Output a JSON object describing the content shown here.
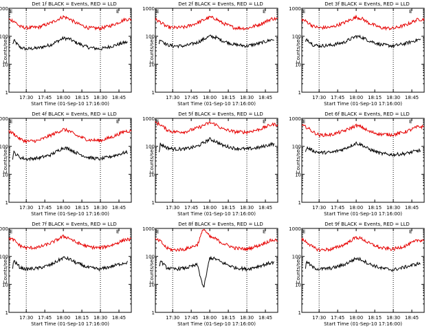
{
  "colors": {
    "events": "#000000",
    "lld": "#e60000",
    "background": "#ffffff"
  },
  "chart_data": [
    {
      "type": "line",
      "title": "Det 1f BLACK = Events, RED = LLD",
      "xlabel": "Start Time (01-Sep-10 17:16:00)",
      "ylabel": "Counts/sec",
      "yscale": "log",
      "ylim": [
        1,
        1000
      ],
      "xlim": [
        "17:16",
        "18:55"
      ],
      "x_ticks": [
        "17:30",
        "17:45",
        "18:00",
        "18:15",
        "18:30",
        "18:45"
      ],
      "y_ticks": [
        "1",
        "10",
        "100",
        "1000"
      ],
      "corner_markers": [
        "E",
        "E"
      ],
      "vertical_lines": [
        "17:30",
        "18:30"
      ],
      "x": [
        "17:16",
        "17:20",
        "17:25",
        "17:30",
        "17:40",
        "17:50",
        "18:00",
        "18:05",
        "18:10",
        "18:20",
        "18:30",
        "18:40",
        "18:50"
      ],
      "series": [
        {
          "name": "Events",
          "color": "black",
          "values": [
            20,
            70,
            40,
            35,
            38,
            50,
            85,
            80,
            60,
            40,
            35,
            45,
            60
          ],
          "start": "17:19",
          "end": "18:52"
        },
        {
          "name": "LLD",
          "color": "red",
          "values": [
            400,
            350,
            220,
            200,
            210,
            300,
            500,
            420,
            300,
            200,
            190,
            250,
            400
          ],
          "start": "17:16",
          "end": "18:55"
        }
      ]
    },
    {
      "type": "line",
      "title": "Det 2f BLACK = Events, RED = LLD",
      "xlabel": "Start Time (01-Sep-10 17:16:00)",
      "ylabel": "Counts/sec",
      "yscale": "log",
      "ylim": [
        1,
        1000
      ],
      "xlim": [
        "17:16",
        "18:55"
      ],
      "x_ticks": [
        "17:30",
        "17:45",
        "18:00",
        "18:15",
        "18:30",
        "18:45"
      ],
      "y_ticks": [
        "1",
        "10",
        "100",
        "1000"
      ],
      "corner_markers": [
        "E",
        "E"
      ],
      "vertical_lines": [
        "17:30",
        "18:30"
      ],
      "x": [
        "17:16",
        "17:20",
        "17:25",
        "17:30",
        "17:40",
        "17:50",
        "18:00",
        "18:05",
        "18:10",
        "18:20",
        "18:30",
        "18:40",
        "18:50"
      ],
      "series": [
        {
          "name": "Events",
          "color": "black",
          "values": [
            20,
            80,
            50,
            45,
            45,
            60,
            100,
            90,
            70,
            50,
            45,
            55,
            75
          ],
          "start": "17:19",
          "end": "18:52"
        },
        {
          "name": "LLD",
          "color": "red",
          "values": [
            400,
            320,
            220,
            200,
            210,
            300,
            480,
            420,
            300,
            200,
            190,
            260,
            420
          ],
          "start": "17:16",
          "end": "18:55"
        }
      ]
    },
    {
      "type": "line",
      "title": "Det 3f BLACK = Events, RED = LLD",
      "xlabel": "Start Time (01-Sep-10 17:16:00)",
      "ylabel": "Counts/sec",
      "yscale": "log",
      "ylim": [
        1,
        1000
      ],
      "xlim": [
        "17:16",
        "18:55"
      ],
      "x_ticks": [
        "17:30",
        "17:45",
        "18:00",
        "18:15",
        "18:30",
        "18:45"
      ],
      "y_ticks": [
        "1",
        "10",
        "100",
        "1000"
      ],
      "corner_markers": [
        "E",
        "E"
      ],
      "vertical_lines": [
        "17:30",
        "18:30"
      ],
      "x": [
        "17:16",
        "17:20",
        "17:25",
        "17:30",
        "17:40",
        "17:50",
        "18:00",
        "18:05",
        "18:10",
        "18:20",
        "18:30",
        "18:40",
        "18:50"
      ],
      "series": [
        {
          "name": "Events",
          "color": "black",
          "values": [
            25,
            80,
            50,
            45,
            48,
            60,
            100,
            90,
            70,
            50,
            45,
            55,
            75
          ],
          "start": "17:19",
          "end": "18:52"
        },
        {
          "name": "LLD",
          "color": "red",
          "values": [
            400,
            330,
            230,
            200,
            210,
            300,
            480,
            420,
            300,
            200,
            190,
            250,
            400
          ],
          "start": "17:16",
          "end": "18:55"
        }
      ]
    },
    {
      "type": "line",
      "title": "Det 4f BLACK = Events, RED = LLD",
      "xlabel": "Start Time (01-Sep-10 17:16:00)",
      "ylabel": "Counts/sec",
      "yscale": "log",
      "ylim": [
        1,
        1000
      ],
      "xlim": [
        "17:16",
        "18:55"
      ],
      "x_ticks": [
        "17:30",
        "17:45",
        "18:00",
        "18:15",
        "18:30",
        "18:45"
      ],
      "y_ticks": [
        "1",
        "10",
        "100",
        "1000"
      ],
      "corner_markers": [
        "E",
        "E"
      ],
      "vertical_lines": [
        "17:30",
        "18:30"
      ],
      "x": [
        "17:16",
        "17:20",
        "17:25",
        "17:30",
        "17:40",
        "17:50",
        "18:00",
        "18:05",
        "18:10",
        "18:20",
        "18:30",
        "18:40",
        "18:50"
      ],
      "series": [
        {
          "name": "Events",
          "color": "black",
          "values": [
            10,
            60,
            40,
            35,
            38,
            50,
            90,
            80,
            60,
            40,
            35,
            45,
            60
          ],
          "start": "17:19",
          "end": "18:52"
        },
        {
          "name": "LLD",
          "color": "red",
          "values": [
            350,
            280,
            180,
            150,
            160,
            250,
            400,
            350,
            250,
            170,
            160,
            220,
            350
          ],
          "start": "17:16",
          "end": "18:55"
        }
      ]
    },
    {
      "type": "line",
      "title": "Det 5f BLACK = Events, RED = LLD",
      "xlabel": "Start Time (01-Sep-10 17:16:00)",
      "ylabel": "Counts/sec",
      "yscale": "log",
      "ylim": [
        1,
        1000
      ],
      "xlim": [
        "17:16",
        "18:55"
      ],
      "x_ticks": [
        "17:30",
        "17:45",
        "18:00",
        "18:15",
        "18:30",
        "18:45"
      ],
      "y_ticks": [
        "1",
        "10",
        "100",
        "1000"
      ],
      "corner_markers": [
        "E",
        "E"
      ],
      "vertical_lines": [
        "17:30",
        "18:30"
      ],
      "x": [
        "17:16",
        "17:20",
        "17:25",
        "17:30",
        "17:40",
        "17:50",
        "18:00",
        "18:05",
        "18:10",
        "18:20",
        "18:30",
        "18:40",
        "18:50"
      ],
      "series": [
        {
          "name": "Events",
          "color": "black",
          "values": [
            10,
            120,
            90,
            80,
            80,
            100,
            180,
            150,
            110,
            85,
            80,
            90,
            120
          ],
          "start": "17:19",
          "end": "18:52"
        },
        {
          "name": "LLD",
          "color": "red",
          "values": [
            700,
            600,
            400,
            330,
            330,
            450,
            700,
            600,
            420,
            330,
            320,
            400,
            600
          ],
          "start": "17:16",
          "end": "18:55"
        }
      ]
    },
    {
      "type": "line",
      "title": "Det 6f BLACK = Events, RED = LLD",
      "xlabel": "Start Time (01-Sep-10 17:16:00)",
      "ylabel": "Counts/sec",
      "yscale": "log",
      "ylim": [
        1,
        1000
      ],
      "xlim": [
        "17:16",
        "18:55"
      ],
      "x_ticks": [
        "17:30",
        "17:45",
        "18:00",
        "18:15",
        "18:30",
        "18:45"
      ],
      "y_ticks": [
        "1",
        "10",
        "100",
        "1000"
      ],
      "corner_markers": [
        "E",
        "E"
      ],
      "vertical_lines": [
        "17:30",
        "18:30"
      ],
      "x": [
        "17:16",
        "17:20",
        "17:25",
        "17:30",
        "17:40",
        "17:50",
        "18:00",
        "18:05",
        "18:10",
        "18:20",
        "18:30",
        "18:40",
        "18:50"
      ],
      "series": [
        {
          "name": "Events",
          "color": "black",
          "values": [
            15,
            90,
            70,
            60,
            60,
            80,
            130,
            110,
            80,
            55,
            50,
            55,
            70
          ],
          "start": "17:19",
          "end": "18:52"
        },
        {
          "name": "LLD",
          "color": "red",
          "values": [
            550,
            480,
            330,
            250,
            260,
            350,
            550,
            480,
            340,
            270,
            260,
            330,
            500
          ],
          "start": "17:16",
          "end": "18:55"
        }
      ]
    },
    {
      "type": "line",
      "title": "Det 7f BLACK = Events, RED = LLD",
      "xlabel": "Start Time (01-Sep-10 17:16:00)",
      "ylabel": "Counts/sec",
      "yscale": "log",
      "ylim": [
        1,
        1000
      ],
      "xlim": [
        "17:16",
        "18:55"
      ],
      "x_ticks": [
        "17:30",
        "17:45",
        "18:00",
        "18:15",
        "18:30",
        "18:45"
      ],
      "y_ticks": [
        "1",
        "10",
        "100",
        "1000"
      ],
      "corner_markers": [
        "E",
        "E"
      ],
      "vertical_lines": [
        "17:30",
        "18:30"
      ],
      "x": [
        "17:16",
        "17:20",
        "17:25",
        "17:30",
        "17:40",
        "17:50",
        "18:00",
        "18:05",
        "18:10",
        "18:20",
        "18:30",
        "18:40",
        "18:50"
      ],
      "series": [
        {
          "name": "Events",
          "color": "black",
          "values": [
            8,
            70,
            40,
            35,
            38,
            50,
            90,
            80,
            60,
            40,
            35,
            45,
            60
          ],
          "start": "17:19",
          "end": "18:52"
        },
        {
          "name": "LLD",
          "color": "red",
          "values": [
            450,
            380,
            240,
            200,
            210,
            300,
            520,
            450,
            320,
            220,
            200,
            260,
            400
          ],
          "start": "17:16",
          "end": "18:55"
        }
      ]
    },
    {
      "type": "line",
      "title": "Det 8f BLACK = Events, RED = LLD",
      "xlabel": "Start Time (01-Sep-10 17:16:00)",
      "ylabel": "Counts/sec",
      "yscale": "log",
      "ylim": [
        1,
        1000
      ],
      "xlim": [
        "17:16",
        "18:55"
      ],
      "x_ticks": [
        "17:30",
        "17:45",
        "18:00",
        "18:15",
        "18:30",
        "18:45"
      ],
      "y_ticks": [
        "1",
        "10",
        "100",
        "1000"
      ],
      "corner_markers": [
        "E",
        "E"
      ],
      "vertical_lines": [
        "17:30",
        "18:30"
      ],
      "x": [
        "17:16",
        "17:20",
        "17:25",
        "17:30",
        "17:40",
        "17:50",
        "17:55",
        "18:00",
        "18:05",
        "18:10",
        "18:20",
        "18:30",
        "18:40",
        "18:50"
      ],
      "series": [
        {
          "name": "Events",
          "color": "black",
          "values": [
            8,
            70,
            40,
            35,
            38,
            50,
            7,
            90,
            80,
            60,
            40,
            35,
            45,
            60
          ],
          "start": "17:19",
          "end": "18:52"
        },
        {
          "name": "LLD",
          "color": "red",
          "values": [
            400,
            350,
            200,
            170,
            180,
            260,
            1000,
            500,
            420,
            300,
            200,
            180,
            250,
            380
          ],
          "start": "17:16",
          "end": "18:55"
        }
      ]
    },
    {
      "type": "line",
      "title": "Det 9f BLACK = Events, RED = LLD",
      "xlabel": "Start Time (01-Sep-10 17:16:00)",
      "ylabel": "Counts/sec",
      "yscale": "log",
      "ylim": [
        1,
        1000
      ],
      "xlim": [
        "17:16",
        "18:55"
      ],
      "x_ticks": [
        "17:30",
        "17:45",
        "18:00",
        "18:15",
        "18:30",
        "18:45"
      ],
      "y_ticks": [
        "1",
        "10",
        "100",
        "1000"
      ],
      "corner_markers": [
        "E",
        "E"
      ],
      "vertical_lines": [
        "17:30",
        "18:30"
      ],
      "x": [
        "17:16",
        "17:20",
        "17:25",
        "17:30",
        "17:40",
        "17:50",
        "18:00",
        "18:05",
        "18:10",
        "18:20",
        "18:30",
        "18:40",
        "18:50"
      ],
      "series": [
        {
          "name": "Events",
          "color": "black",
          "values": [
            8,
            65,
            40,
            35,
            38,
            50,
            85,
            75,
            55,
            38,
            33,
            42,
            55
          ],
          "start": "17:19",
          "end": "18:52"
        },
        {
          "name": "LLD",
          "color": "red",
          "values": [
            400,
            330,
            210,
            170,
            180,
            260,
            480,
            420,
            300,
            200,
            180,
            240,
            380
          ],
          "start": "17:16",
          "end": "18:55"
        }
      ]
    }
  ]
}
